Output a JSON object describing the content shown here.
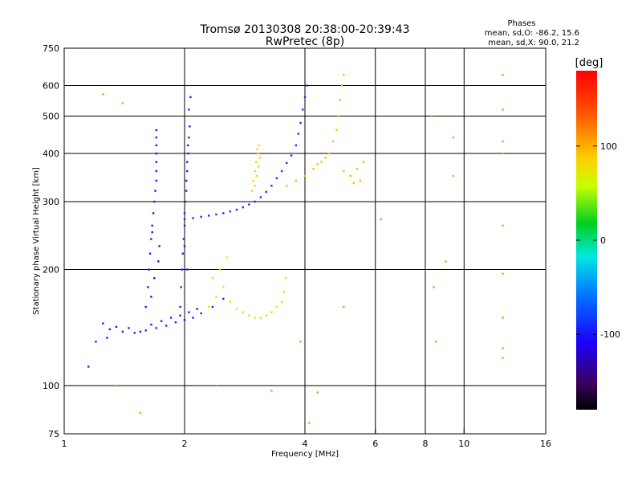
{
  "chart_data": {
    "type": "scatter",
    "title": "Tromsø 20130308 20:38:00-20:39:43",
    "subtitle": "RwPretec (8p)",
    "xlabel": "Frequency [MHz]",
    "ylabel": "Stationary phase Virtual Height [km]",
    "x_scale": "log",
    "y_scale": "log",
    "xlim": [
      1,
      16
    ],
    "ylim": [
      75,
      750
    ],
    "x_ticks": [
      1,
      2,
      4,
      6,
      8,
      10,
      16
    ],
    "x_tick_labels": [
      "1",
      "2",
      "4",
      "6",
      "8",
      "10",
      "16"
    ],
    "x_gridlines": [
      2,
      4,
      6,
      8,
      10
    ],
    "y_ticks": [
      75,
      100,
      200,
      300,
      400,
      500,
      600,
      750
    ],
    "y_tick_labels": [
      "75",
      "100",
      "200",
      "300",
      "400",
      "500",
      "600",
      "750"
    ],
    "y_gridlines": [
      100,
      200,
      300,
      400,
      500,
      600
    ],
    "grid": true,
    "stats": {
      "heading": "Phases",
      "line_o": "mean, sd,O: -86.2, 15.6",
      "line_x": "mean, sd,X:  90.0, 21.2"
    },
    "colorbar": {
      "label": "[deg]",
      "range": [
        -180,
        180
      ],
      "ticks": [
        100,
        0,
        -100
      ],
      "tick_labels": [
        "100",
        "0",
        "-100"
      ]
    },
    "series": [
      {
        "name": "Low-height O-mode trace (blue, ~1.3-2.5 MHz)",
        "phase": -95,
        "points": [
          [
            1.3,
            140
          ],
          [
            1.4,
            138
          ],
          [
            1.5,
            137
          ],
          [
            1.6,
            139
          ],
          [
            1.7,
            141
          ],
          [
            1.8,
            143
          ],
          [
            1.9,
            146
          ],
          [
            2.0,
            148
          ],
          [
            2.1,
            150
          ],
          [
            2.2,
            154
          ],
          [
            2.35,
            160
          ],
          [
            2.5,
            168
          ],
          [
            1.25,
            145
          ],
          [
            1.35,
            142
          ],
          [
            1.45,
            141
          ],
          [
            1.55,
            138
          ],
          [
            1.65,
            144
          ],
          [
            1.75,
            147
          ],
          [
            1.85,
            150
          ],
          [
            1.95,
            152
          ],
          [
            2.05,
            155
          ],
          [
            2.15,
            158
          ],
          [
            1.15,
            112
          ],
          [
            1.2,
            130
          ],
          [
            1.28,
            133
          ]
        ]
      },
      {
        "name": "O-mode cusp column near 1.7 MHz (blue)",
        "phase": -100,
        "points": [
          [
            1.6,
            160
          ],
          [
            1.62,
            180
          ],
          [
            1.63,
            200
          ],
          [
            1.64,
            220
          ],
          [
            1.65,
            240
          ],
          [
            1.66,
            260
          ],
          [
            1.67,
            280
          ],
          [
            1.68,
            300
          ],
          [
            1.69,
            320
          ],
          [
            1.7,
            340
          ],
          [
            1.7,
            360
          ],
          [
            1.7,
            380
          ],
          [
            1.7,
            400
          ],
          [
            1.7,
            420
          ],
          [
            1.7,
            440
          ],
          [
            1.7,
            460
          ],
          [
            1.65,
            170
          ],
          [
            1.68,
            190
          ],
          [
            1.72,
            210
          ],
          [
            1.66,
            250
          ],
          [
            1.73,
            230
          ]
        ]
      },
      {
        "name": "O-mode cusp column near 2.0 MHz (blue)",
        "phase": -95,
        "points": [
          [
            1.95,
            160
          ],
          [
            1.96,
            180
          ],
          [
            1.97,
            200
          ],
          [
            1.98,
            220
          ],
          [
            1.99,
            240
          ],
          [
            2.0,
            260
          ],
          [
            2.0,
            280
          ],
          [
            2.01,
            300
          ],
          [
            2.02,
            320
          ],
          [
            2.02,
            340
          ],
          [
            2.03,
            360
          ],
          [
            2.03,
            380
          ],
          [
            2.04,
            400
          ],
          [
            2.04,
            420
          ],
          [
            2.05,
            440
          ],
          [
            2.06,
            470
          ],
          [
            2.05,
            520
          ],
          [
            2.07,
            560
          ],
          [
            2.0,
            230
          ],
          [
            2.03,
            200
          ]
        ]
      },
      {
        "name": "F-layer O-mode trace 2.0-3.8 MHz (blue)",
        "phase": -90,
        "points": [
          [
            2.0,
            270
          ],
          [
            2.1,
            272
          ],
          [
            2.2,
            274
          ],
          [
            2.3,
            276
          ],
          [
            2.4,
            278
          ],
          [
            2.5,
            280
          ],
          [
            2.6,
            283
          ],
          [
            2.7,
            286
          ],
          [
            2.8,
            290
          ],
          [
            2.9,
            295
          ],
          [
            3.0,
            300
          ],
          [
            3.1,
            308
          ],
          [
            3.2,
            318
          ],
          [
            3.3,
            330
          ],
          [
            3.4,
            345
          ],
          [
            3.5,
            360
          ],
          [
            3.6,
            378
          ],
          [
            3.7,
            395
          ],
          [
            3.8,
            420
          ],
          [
            3.85,
            450
          ],
          [
            3.9,
            480
          ],
          [
            3.95,
            520
          ],
          [
            4.0,
            560
          ],
          [
            4.05,
            600
          ]
        ]
      },
      {
        "name": "Low-height X-mode echoes (yellow-green)",
        "phase": 80,
        "points": [
          [
            2.3,
            160
          ],
          [
            2.4,
            170
          ],
          [
            2.5,
            180
          ],
          [
            2.6,
            165
          ],
          [
            2.7,
            158
          ],
          [
            2.8,
            155
          ],
          [
            2.9,
            152
          ],
          [
            3.0,
            150
          ],
          [
            3.1,
            150
          ],
          [
            3.2,
            152
          ],
          [
            3.3,
            155
          ],
          [
            3.4,
            160
          ],
          [
            3.5,
            165
          ],
          [
            3.55,
            175
          ],
          [
            3.58,
            190
          ],
          [
            2.45,
            200
          ],
          [
            2.55,
            215
          ],
          [
            2.35,
            190
          ]
        ]
      },
      {
        "name": "X-mode trace near 3 MHz (yellow)",
        "phase": 95,
        "points": [
          [
            2.95,
            320
          ],
          [
            2.97,
            340
          ],
          [
            3.0,
            360
          ],
          [
            3.02,
            380
          ],
          [
            3.05,
            400
          ],
          [
            3.07,
            420
          ],
          [
            3.0,
            330
          ],
          [
            3.03,
            350
          ],
          [
            3.06,
            370
          ],
          [
            3.09,
            390
          ],
          [
            3.04,
            410
          ]
        ]
      },
      {
        "name": "F-layer X-mode trace 3.5-5.6 MHz (yellow-orange)",
        "phase": 110,
        "points": [
          [
            3.6,
            330
          ],
          [
            3.8,
            340
          ],
          [
            4.0,
            350
          ],
          [
            4.2,
            365
          ],
          [
            4.4,
            380
          ],
          [
            4.6,
            400
          ],
          [
            4.7,
            430
          ],
          [
            4.8,
            460
          ],
          [
            4.85,
            500
          ],
          [
            4.9,
            550
          ],
          [
            4.95,
            600
          ],
          [
            5.0,
            640
          ],
          [
            4.5,
            390
          ],
          [
            5.0,
            360
          ],
          [
            5.2,
            350
          ],
          [
            5.4,
            365
          ],
          [
            5.6,
            380
          ],
          [
            5.5,
            340
          ],
          [
            5.3,
            335
          ],
          [
            4.3,
            375
          ]
        ]
      },
      {
        "name": "Scattered outliers",
        "phase": 20,
        "points": [
          [
            1.25,
            570
          ],
          [
            1.4,
            540
          ],
          [
            1.35,
            100
          ],
          [
            1.55,
            85
          ],
          [
            2.4,
            100
          ],
          [
            3.3,
            97
          ],
          [
            3.9,
            130
          ],
          [
            4.1,
            80
          ],
          [
            4.3,
            96
          ],
          [
            5.0,
            160
          ],
          [
            6.2,
            270
          ],
          [
            8.3,
            500
          ],
          [
            8.4,
            180
          ],
          [
            8.5,
            130
          ],
          [
            9.0,
            210
          ],
          [
            9.4,
            440
          ],
          [
            9.4,
            350
          ],
          [
            12.5,
            640
          ],
          [
            12.5,
            520
          ],
          [
            12.5,
            430
          ],
          [
            12.5,
            400
          ],
          [
            12.5,
            260
          ],
          [
            12.5,
            195
          ],
          [
            12.5,
            150
          ],
          [
            12.5,
            125
          ],
          [
            12.5,
            118
          ]
        ]
      }
    ]
  }
}
